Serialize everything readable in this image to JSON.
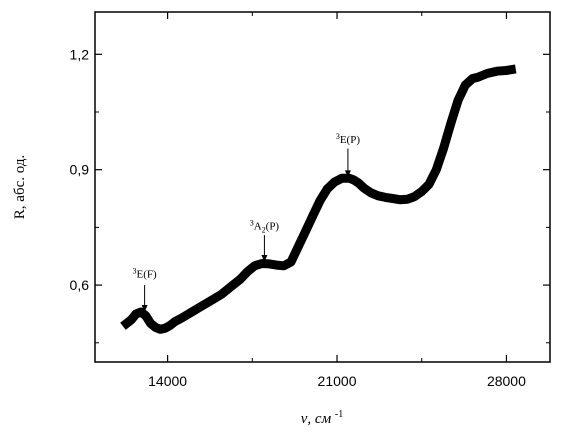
{
  "chart_data": {
    "type": "line",
    "title": "",
    "xlabel": "ν, см",
    "xlabel_sup": "-1",
    "ylabel": "R, абс. од.",
    "xlim": [
      11000,
      29800
    ],
    "ylim": [
      0.4,
      1.31
    ],
    "x_ticks": [
      14000,
      21000,
      28000
    ],
    "x_tick_labels": [
      "14000",
      "21000",
      "28000"
    ],
    "y_ticks": [
      0.6,
      0.9,
      1.2
    ],
    "y_tick_labels": [
      "0,6",
      "0,9",
      "1,2"
    ],
    "grid": false,
    "legend": "none",
    "line_color": "#000000",
    "series": [
      {
        "x": [
          12300,
          12500,
          12700,
          12900,
          13100,
          13300,
          13500,
          13700,
          13900,
          14100,
          14300,
          14600,
          15000,
          15400,
          15800,
          16200,
          16600,
          17000,
          17300,
          17600,
          17900,
          18200,
          18500,
          18800,
          19100,
          19400,
          19700,
          20000,
          20300,
          20600,
          20900,
          21200,
          21500,
          21700,
          21900,
          22100,
          22400,
          22700,
          23000,
          23300,
          23600,
          23900,
          24200,
          24500,
          24800,
          25100,
          25400,
          25700,
          26000,
          26300,
          26600,
          26800,
          27000,
          27200,
          27400,
          27600,
          27800,
          28000,
          28200
        ],
        "y": [
          0.5,
          0.51,
          0.525,
          0.53,
          0.52,
          0.5,
          0.49,
          0.485,
          0.488,
          0.495,
          0.505,
          0.515,
          0.53,
          0.545,
          0.56,
          0.575,
          0.595,
          0.615,
          0.635,
          0.65,
          0.656,
          0.655,
          0.652,
          0.65,
          0.66,
          0.7,
          0.74,
          0.78,
          0.82,
          0.85,
          0.868,
          0.878,
          0.878,
          0.873,
          0.865,
          0.853,
          0.84,
          0.832,
          0.828,
          0.825,
          0.822,
          0.823,
          0.83,
          0.843,
          0.862,
          0.9,
          0.955,
          1.02,
          1.08,
          1.12,
          1.137,
          1.14,
          1.145,
          1.15,
          1.153,
          1.156,
          1.157,
          1.158,
          1.16
        ]
      }
    ],
    "annotations": [
      {
        "main": "E(F)",
        "sup": "3",
        "sub": "",
        "tail": "",
        "x": 13050,
        "y_arrow_tip": 0.53,
        "y_arrow_start": 0.6,
        "y_text": 0.62
      },
      {
        "main": "A",
        "sup": "3",
        "sub": "2",
        "tail": "(P)",
        "x": 18000,
        "y_arrow_tip": 0.66,
        "y_arrow_start": 0.73,
        "y_text": 0.745
      },
      {
        "main": "E(P)",
        "sup": "3",
        "sub": "",
        "tail": "",
        "x": 21450,
        "y_arrow_tip": 0.88,
        "y_arrow_start": 0.955,
        "y_text": 0.97
      }
    ]
  }
}
